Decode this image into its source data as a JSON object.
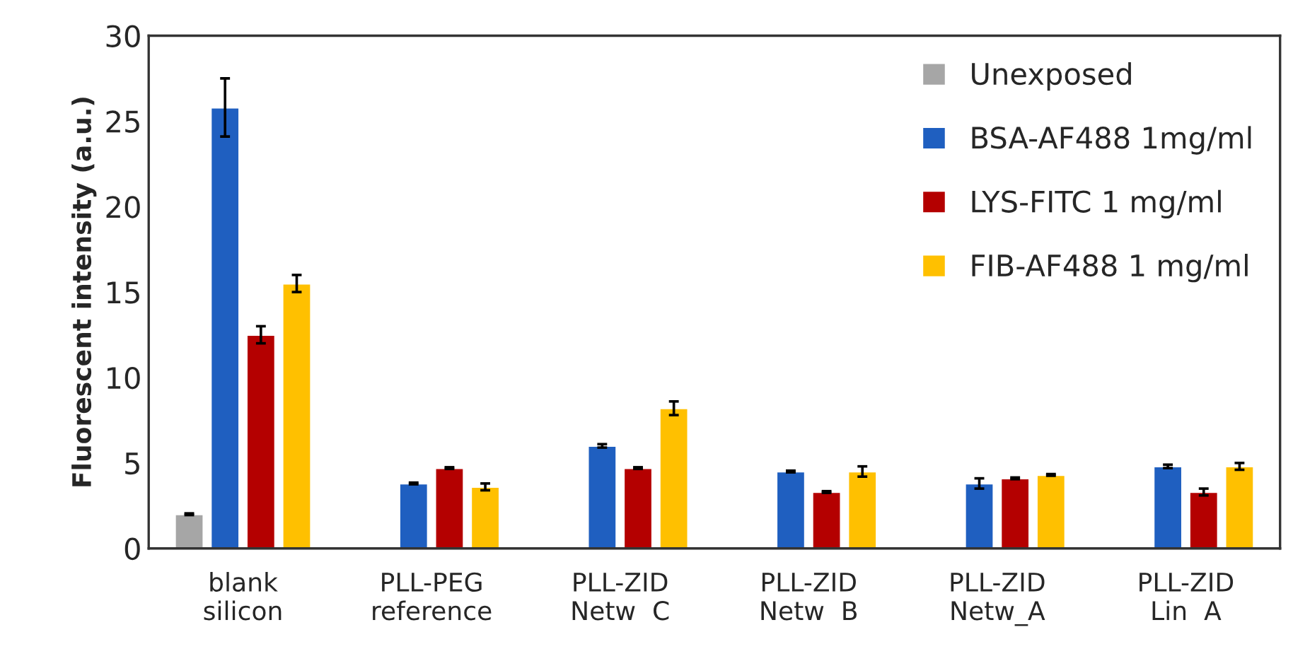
{
  "chart_data": {
    "type": "bar",
    "ylabel": "Fluorescent intensity (a.u.)",
    "categories": [
      "blank\nsilicon",
      "PLL-PEG\nreference",
      "PLL-ZID\nNetw  C",
      "PLL-ZID\nNetw  B",
      "PLL-ZID\nNetw_A",
      "PLL-ZID\nLin  A"
    ],
    "series": [
      {
        "name": "Unexposed",
        "color": "#a6a6a6",
        "values": [
          2.0,
          null,
          null,
          null,
          null,
          null
        ],
        "errors": [
          0.05,
          null,
          null,
          null,
          null,
          null
        ]
      },
      {
        "name": "BSA-AF488 1mg/ml",
        "color": "#1f5fc0",
        "values": [
          25.8,
          3.8,
          6.0,
          4.5,
          3.8,
          4.8
        ],
        "errors": [
          1.7,
          0.05,
          0.1,
          0.05,
          0.3,
          0.1
        ]
      },
      {
        "name": "LYS-FITC 1 mg/ml",
        "color": "#b40000",
        "values": [
          12.5,
          4.7,
          4.7,
          3.3,
          4.1,
          3.3
        ],
        "errors": [
          0.5,
          0.05,
          0.05,
          0.05,
          0.05,
          0.2
        ]
      },
      {
        "name": "FIB-AF488 1 mg/ml",
        "color": "#ffc000",
        "values": [
          15.5,
          3.6,
          8.2,
          4.5,
          4.3,
          4.8
        ],
        "errors": [
          0.5,
          0.2,
          0.4,
          0.3,
          0.05,
          0.2
        ]
      }
    ],
    "ylim": [
      0,
      30
    ],
    "yticks": [
      0,
      5,
      10,
      15,
      20,
      25,
      30
    ],
    "legend": "top right",
    "grid": false
  }
}
